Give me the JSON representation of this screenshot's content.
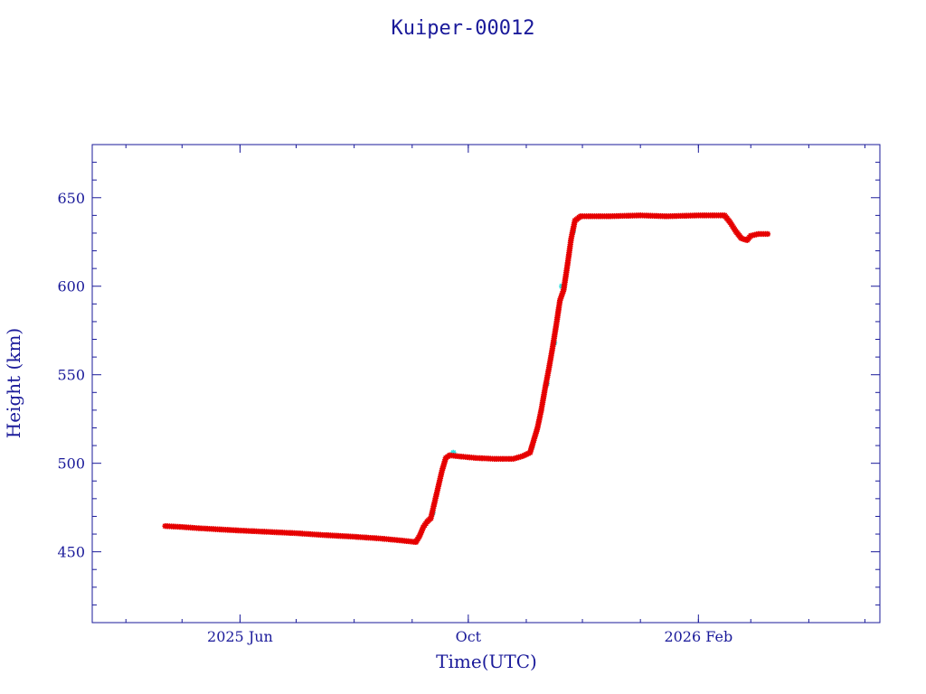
{
  "chart_data": {
    "type": "scatter",
    "title": "Kuiper-00012",
    "xlabel": "Time(UTC)",
    "ylabel": "Height (km)",
    "xlim": [
      "2025-03-14",
      "2026-05-09"
    ],
    "ylim": [
      410,
      680
    ],
    "x_ticks": [
      {
        "date": "2025-06-01",
        "label": "2025 Jun"
      },
      {
        "date": "2025-10-01",
        "label": "Oct"
      },
      {
        "date": "2026-02-01",
        "label": "2026 Feb"
      }
    ],
    "y_ticks": [
      450,
      500,
      550,
      600,
      650
    ],
    "grid": false,
    "colors": {
      "axis": "#1a1a9a",
      "primary_points": "#e60000",
      "secondary_points": "#33dddd",
      "trace": "#000000"
    },
    "series": [
      {
        "marker": "star",
        "color": "#e60000",
        "points": [
          [
            "2025-04-22",
            464.5
          ],
          [
            "2025-05-01",
            464.0
          ],
          [
            "2025-05-10",
            463.3
          ],
          [
            "2025-05-20",
            462.7
          ],
          [
            "2025-06-01",
            462.0
          ],
          [
            "2025-06-15",
            461.3
          ],
          [
            "2025-07-01",
            460.5
          ],
          [
            "2025-07-15",
            459.5
          ],
          [
            "2025-08-01",
            458.5
          ],
          [
            "2025-08-15",
            457.5
          ],
          [
            "2025-08-25",
            456.5
          ],
          [
            "2025-09-03",
            455.5
          ],
          [
            "2025-09-05",
            459.0
          ],
          [
            "2025-09-07",
            464.0
          ],
          [
            "2025-09-09",
            467.0
          ],
          [
            "2025-09-11",
            469.0
          ],
          [
            "2025-09-13",
            478.0
          ],
          [
            "2025-09-15",
            487.0
          ],
          [
            "2025-09-17",
            496.0
          ],
          [
            "2025-09-19",
            503.0
          ],
          [
            "2025-09-21",
            504.5
          ],
          [
            "2025-09-25",
            504.0
          ],
          [
            "2025-10-05",
            503.0
          ],
          [
            "2025-10-15",
            502.5
          ],
          [
            "2025-10-25",
            502.5
          ],
          [
            "2025-10-30",
            504.0
          ],
          [
            "2025-11-03",
            506.0
          ],
          [
            "2025-11-05",
            513.0
          ],
          [
            "2025-11-07",
            520.0
          ],
          [
            "2025-11-09",
            530.0
          ],
          [
            "2025-11-11",
            542.0
          ],
          [
            "2025-11-13",
            553.0
          ],
          [
            "2025-11-15",
            565.0
          ],
          [
            "2025-11-17",
            578.0
          ],
          [
            "2025-11-19",
            592.0
          ],
          [
            "2025-11-21",
            598.0
          ],
          [
            "2025-11-23",
            612.0
          ],
          [
            "2025-11-25",
            627.0
          ],
          [
            "2025-11-27",
            637.0
          ],
          [
            "2025-11-30",
            639.5
          ],
          [
            "2025-12-15",
            639.5
          ],
          [
            "2026-01-01",
            640.0
          ],
          [
            "2026-01-15",
            639.5
          ],
          [
            "2026-02-01",
            640.0
          ],
          [
            "2026-02-15",
            640.0
          ],
          [
            "2026-02-18",
            636.0
          ],
          [
            "2026-02-21",
            631.0
          ],
          [
            "2026-02-24",
            627.0
          ],
          [
            "2026-02-27",
            626.0
          ],
          [
            "2026-03-01",
            628.5
          ],
          [
            "2026-03-05",
            629.5
          ],
          [
            "2026-03-10",
            629.5
          ]
        ]
      },
      {
        "marker": "star",
        "color": "#33dddd",
        "points": [
          [
            "2025-09-12",
            472.0
          ],
          [
            "2025-09-23",
            506.0
          ],
          [
            "2025-11-04",
            509.0
          ],
          [
            "2025-11-12",
            545.0
          ],
          [
            "2025-11-16",
            568.0
          ],
          [
            "2025-11-20",
            600.0
          ],
          [
            "2025-11-26",
            631.0
          ]
        ]
      }
    ]
  }
}
